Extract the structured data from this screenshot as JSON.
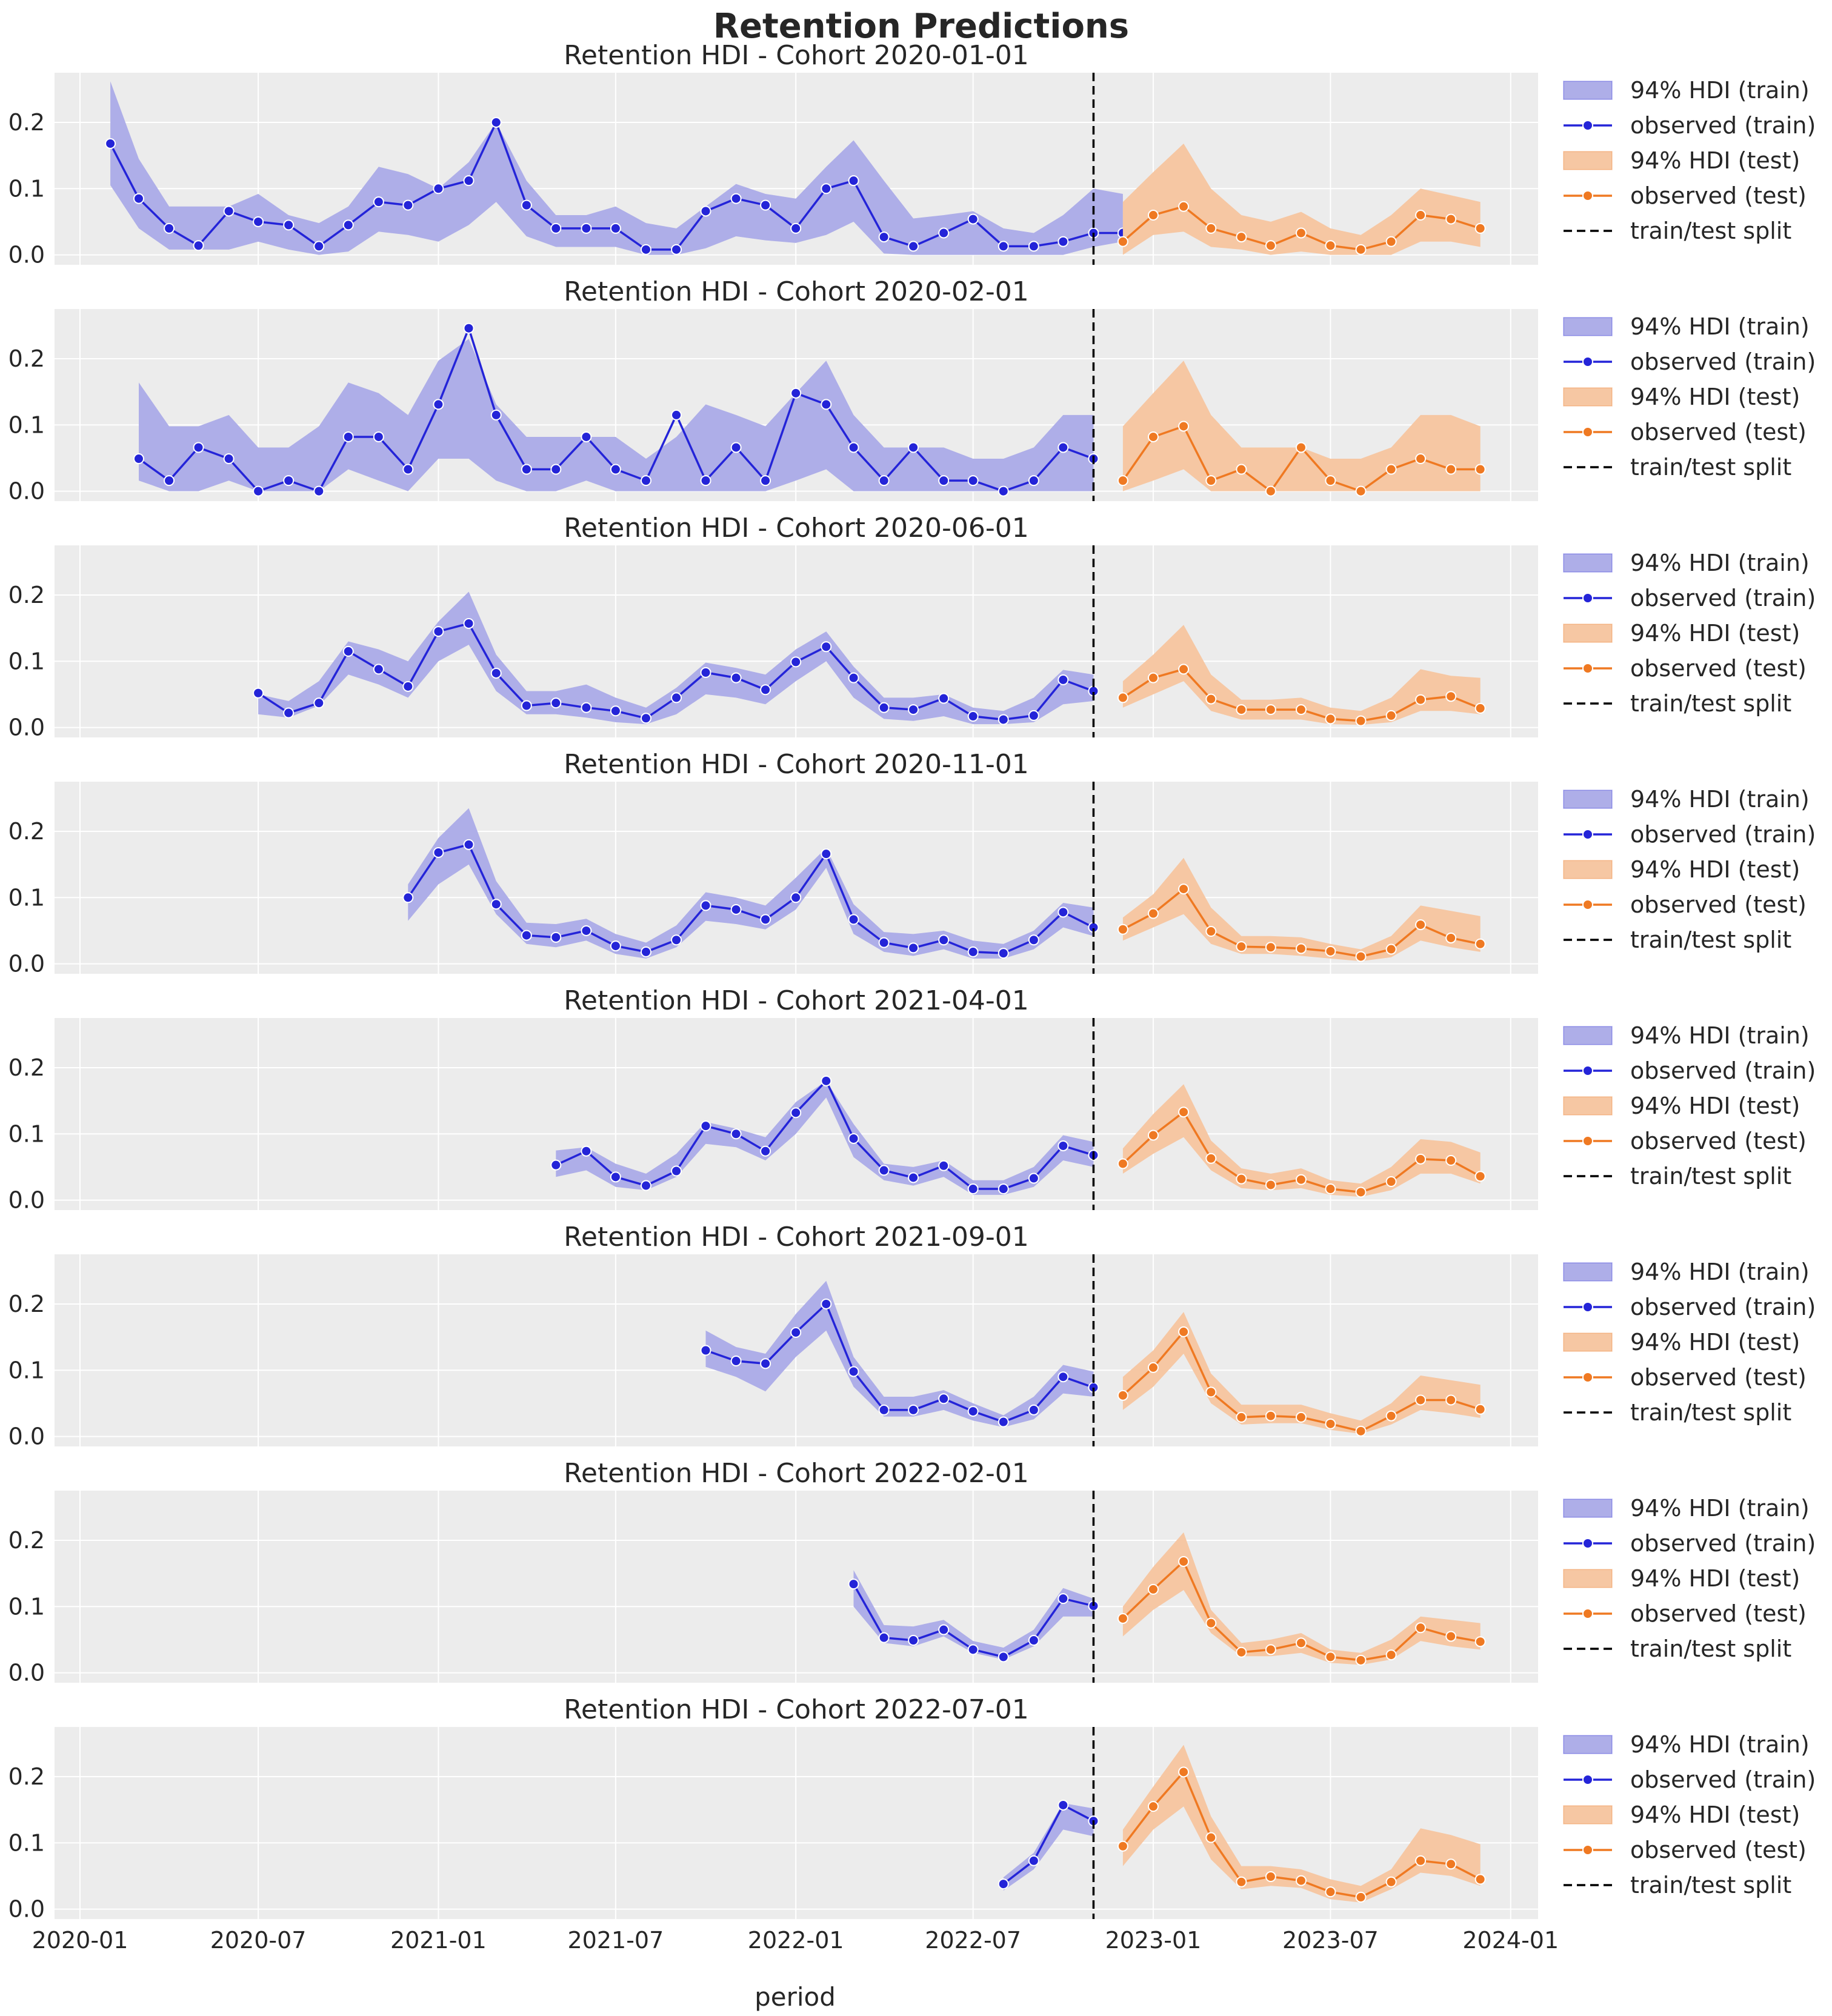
{
  "title": "Retention Predictions",
  "colors": {
    "train": "#2424d8",
    "train_band": "#aeaee8",
    "test": "#ef7922",
    "test_band": "#f6c7a3",
    "split": "#000000",
    "axes_bg": "#ececec",
    "grid": "#ffffff"
  },
  "legend": {
    "hdi_train": "94% HDI (train)",
    "observed_train": "observed (train)",
    "hdi_test": "94% HDI (test)",
    "observed_test": "observed (test)",
    "split": "train/test split"
  },
  "chart_data": {
    "type": "line",
    "title": "Retention Predictions",
    "xlabel": "period",
    "ylabel": "",
    "x_ticks": [
      "2020-01",
      "2020-07",
      "2021-01",
      "2021-07",
      "2022-01",
      "2022-07",
      "2023-01",
      "2023-07",
      "2024-01"
    ],
    "xlim": [
      "2019-12-06",
      "2024-01-29"
    ],
    "y_ticks": [
      "0.0",
      "0.1",
      "0.2"
    ],
    "ylim": [
      -0.015,
      0.275
    ],
    "split_date": "2022-11-01",
    "grid": true,
    "legend_position": "outside right",
    "subplots": [
      {
        "title": "Retention HDI - Cohort 2020-01-01",
        "train": {
          "start": "2020-02",
          "observed": [
            0.168,
            0.085,
            0.04,
            0.014,
            0.066,
            0.05,
            0.045,
            0.013,
            0.045,
            0.08,
            0.075,
            0.1,
            0.112,
            0.2,
            0.075,
            0.04,
            0.04,
            0.04,
            0.008,
            0.008,
            0.066,
            0.085,
            0.075,
            0.04,
            0.1,
            0.112,
            0.027,
            0.013,
            0.033,
            0.054,
            0.013,
            0.013,
            0.02,
            0.033,
            0.033
          ],
          "lower": [
            0.105,
            0.04,
            0.008,
            0.008,
            0.008,
            0.02,
            0.008,
            0.0,
            0.005,
            0.035,
            0.03,
            0.02,
            0.045,
            0.08,
            0.028,
            0.012,
            0.012,
            0.012,
            0.0,
            0.0,
            0.01,
            0.028,
            0.022,
            0.018,
            0.03,
            0.05,
            0.002,
            0.0,
            0.0,
            0.0,
            0.0,
            0.0,
            0.0,
            0.012,
            0.02
          ],
          "upper": [
            0.262,
            0.145,
            0.073,
            0.073,
            0.073,
            0.092,
            0.06,
            0.048,
            0.073,
            0.133,
            0.122,
            0.1,
            0.14,
            0.2,
            0.112,
            0.06,
            0.06,
            0.073,
            0.048,
            0.04,
            0.073,
            0.107,
            0.092,
            0.085,
            0.133,
            0.173,
            0.112,
            0.055,
            0.06,
            0.066,
            0.04,
            0.033,
            0.06,
            0.1,
            0.092
          ]
        },
        "test": {
          "start": "2022-12",
          "observed": [
            0.02,
            0.06,
            0.073,
            0.04,
            0.027,
            0.014,
            0.033,
            0.014,
            0.008,
            0.02,
            0.06,
            0.054,
            0.04
          ],
          "lower": [
            0.0,
            0.03,
            0.035,
            0.012,
            0.008,
            0.0,
            0.005,
            0.0,
            0.0,
            0.0,
            0.02,
            0.02,
            0.012
          ],
          "upper": [
            0.08,
            0.125,
            0.168,
            0.1,
            0.06,
            0.05,
            0.065,
            0.04,
            0.03,
            0.06,
            0.1,
            0.09,
            0.08
          ]
        }
      },
      {
        "title": "Retention HDI - Cohort 2020-02-01",
        "train": {
          "start": "2020-03",
          "observed": [
            0.049,
            0.016,
            0.066,
            0.049,
            0.0,
            0.016,
            0.0,
            0.082,
            0.082,
            0.033,
            0.131,
            0.246,
            0.115,
            0.033,
            0.033,
            0.082,
            0.033,
            0.016,
            0.115,
            0.016,
            0.066,
            0.016,
            0.148,
            0.131,
            0.066,
            0.016,
            0.066,
            0.016,
            0.016,
            0.0,
            0.016,
            0.066,
            0.049
          ],
          "lower": [
            0.016,
            0.0,
            0.0,
            0.016,
            0.0,
            0.0,
            0.0,
            0.033,
            0.016,
            0.0,
            0.049,
            0.049,
            0.016,
            0.0,
            0.0,
            0.016,
            0.0,
            0.0,
            0.0,
            0.0,
            0.0,
            0.0,
            0.016,
            0.033,
            0.0,
            0.0,
            0.0,
            0.0,
            0.0,
            0.0,
            0.0,
            0.0,
            0.0
          ],
          "upper": [
            0.164,
            0.098,
            0.098,
            0.115,
            0.066,
            0.066,
            0.098,
            0.164,
            0.148,
            0.115,
            0.197,
            0.23,
            0.131,
            0.082,
            0.082,
            0.082,
            0.082,
            0.049,
            0.082,
            0.131,
            0.115,
            0.098,
            0.148,
            0.197,
            0.115,
            0.066,
            0.066,
            0.066,
            0.049,
            0.049,
            0.066,
            0.115,
            0.115
          ]
        },
        "test": {
          "start": "2022-12",
          "observed": [
            0.016,
            0.082,
            0.098,
            0.016,
            0.033,
            0.0,
            0.066,
            0.016,
            0.0,
            0.033,
            0.049,
            0.033,
            0.033
          ],
          "lower": [
            0.0,
            0.016,
            0.033,
            0.0,
            0.0,
            0.0,
            0.0,
            0.0,
            0.0,
            0.0,
            0.0,
            0.0,
            0.0
          ],
          "upper": [
            0.098,
            0.148,
            0.197,
            0.115,
            0.066,
            0.066,
            0.066,
            0.049,
            0.049,
            0.066,
            0.115,
            0.115,
            0.098
          ]
        }
      },
      {
        "title": "Retention HDI - Cohort 2020-06-01",
        "train": {
          "start": "2020-07",
          "observed": [
            0.052,
            0.022,
            0.037,
            0.115,
            0.088,
            0.062,
            0.145,
            0.157,
            0.082,
            0.033,
            0.037,
            0.03,
            0.025,
            0.014,
            0.045,
            0.083,
            0.075,
            0.057,
            0.099,
            0.122,
            0.075,
            0.03,
            0.027,
            0.044,
            0.017,
            0.012,
            0.018,
            0.072,
            0.055
          ],
          "lower": [
            0.02,
            0.015,
            0.033,
            0.08,
            0.065,
            0.045,
            0.1,
            0.125,
            0.055,
            0.02,
            0.02,
            0.015,
            0.008,
            0.005,
            0.02,
            0.05,
            0.045,
            0.035,
            0.07,
            0.1,
            0.045,
            0.013,
            0.01,
            0.017,
            0.005,
            0.005,
            0.008,
            0.035,
            0.04
          ],
          "upper": [
            0.05,
            0.04,
            0.07,
            0.13,
            0.118,
            0.1,
            0.16,
            0.205,
            0.11,
            0.055,
            0.055,
            0.065,
            0.045,
            0.03,
            0.06,
            0.098,
            0.09,
            0.08,
            0.118,
            0.145,
            0.092,
            0.045,
            0.045,
            0.05,
            0.03,
            0.025,
            0.045,
            0.087,
            0.08
          ]
        },
        "test": {
          "start": "2022-12",
          "observed": [
            0.045,
            0.075,
            0.088,
            0.043,
            0.027,
            0.027,
            0.027,
            0.013,
            0.01,
            0.018,
            0.042,
            0.047,
            0.029
          ],
          "lower": [
            0.03,
            0.05,
            0.07,
            0.025,
            0.012,
            0.012,
            0.012,
            0.005,
            0.004,
            0.008,
            0.025,
            0.025,
            0.02
          ],
          "upper": [
            0.07,
            0.11,
            0.155,
            0.08,
            0.042,
            0.042,
            0.045,
            0.03,
            0.025,
            0.045,
            0.088,
            0.078,
            0.075
          ]
        }
      },
      {
        "title": "Retention HDI - Cohort 2020-11-01",
        "train": {
          "start": "2020-12",
          "observed": [
            0.1,
            0.168,
            0.18,
            0.09,
            0.043,
            0.04,
            0.05,
            0.027,
            0.018,
            0.036,
            0.088,
            0.082,
            0.067,
            0.1,
            0.166,
            0.067,
            0.032,
            0.024,
            0.036,
            0.018,
            0.016,
            0.036,
            0.078,
            0.055
          ],
          "lower": [
            0.065,
            0.12,
            0.15,
            0.075,
            0.03,
            0.025,
            0.035,
            0.015,
            0.008,
            0.025,
            0.065,
            0.06,
            0.052,
            0.082,
            0.145,
            0.045,
            0.018,
            0.012,
            0.022,
            0.008,
            0.008,
            0.022,
            0.055,
            0.042
          ],
          "upper": [
            0.12,
            0.19,
            0.235,
            0.125,
            0.062,
            0.06,
            0.068,
            0.045,
            0.032,
            0.058,
            0.108,
            0.1,
            0.088,
            0.13,
            0.175,
            0.09,
            0.048,
            0.045,
            0.05,
            0.035,
            0.03,
            0.05,
            0.092,
            0.085
          ]
        },
        "test": {
          "start": "2022-12",
          "observed": [
            0.052,
            0.076,
            0.113,
            0.049,
            0.026,
            0.025,
            0.023,
            0.019,
            0.011,
            0.022,
            0.059,
            0.039,
            0.03
          ],
          "lower": [
            0.035,
            0.055,
            0.075,
            0.03,
            0.015,
            0.015,
            0.012,
            0.008,
            0.004,
            0.01,
            0.035,
            0.025,
            0.018
          ],
          "upper": [
            0.07,
            0.105,
            0.16,
            0.085,
            0.042,
            0.042,
            0.04,
            0.03,
            0.022,
            0.042,
            0.088,
            0.08,
            0.072
          ]
        }
      },
      {
        "title": "Retention HDI - Cohort 2021-04-01",
        "train": {
          "start": "2021-05",
          "observed": [
            0.053,
            0.074,
            0.035,
            0.022,
            0.044,
            0.112,
            0.1,
            0.074,
            0.132,
            0.18,
            0.093,
            0.045,
            0.034,
            0.052,
            0.017,
            0.017,
            0.033,
            0.082,
            0.068
          ],
          "lower": [
            0.035,
            0.045,
            0.02,
            0.015,
            0.035,
            0.085,
            0.08,
            0.06,
            0.1,
            0.155,
            0.065,
            0.03,
            0.022,
            0.035,
            0.008,
            0.008,
            0.02,
            0.06,
            0.05
          ],
          "upper": [
            0.075,
            0.08,
            0.055,
            0.04,
            0.07,
            0.118,
            0.108,
            0.095,
            0.148,
            0.18,
            0.115,
            0.055,
            0.05,
            0.06,
            0.03,
            0.03,
            0.05,
            0.098,
            0.088
          ]
        },
        "test": {
          "start": "2022-12",
          "observed": [
            0.055,
            0.098,
            0.133,
            0.063,
            0.032,
            0.023,
            0.031,
            0.017,
            0.012,
            0.028,
            0.062,
            0.06,
            0.036
          ],
          "lower": [
            0.04,
            0.07,
            0.095,
            0.045,
            0.018,
            0.015,
            0.018,
            0.008,
            0.005,
            0.015,
            0.04,
            0.04,
            0.025
          ],
          "upper": [
            0.078,
            0.13,
            0.175,
            0.09,
            0.048,
            0.04,
            0.048,
            0.03,
            0.025,
            0.05,
            0.092,
            0.088,
            0.072
          ]
        }
      },
      {
        "title": "Retention HDI - Cohort 2021-09-01",
        "train": {
          "start": "2021-10",
          "observed": [
            0.13,
            0.114,
            0.11,
            0.157,
            0.2,
            0.098,
            0.04,
            0.04,
            0.057,
            0.038,
            0.022,
            0.04,
            0.09,
            0.074
          ],
          "lower": [
            0.105,
            0.09,
            0.068,
            0.12,
            0.16,
            0.075,
            0.03,
            0.03,
            0.04,
            0.024,
            0.014,
            0.026,
            0.065,
            0.06
          ],
          "upper": [
            0.16,
            0.135,
            0.125,
            0.185,
            0.235,
            0.12,
            0.06,
            0.06,
            0.07,
            0.05,
            0.032,
            0.06,
            0.108,
            0.098
          ]
        },
        "test": {
          "start": "2022-12",
          "observed": [
            0.062,
            0.104,
            0.158,
            0.067,
            0.029,
            0.031,
            0.029,
            0.019,
            0.008,
            0.031,
            0.055,
            0.055,
            0.041
          ],
          "lower": [
            0.04,
            0.075,
            0.125,
            0.05,
            0.018,
            0.02,
            0.02,
            0.01,
            0.004,
            0.018,
            0.04,
            0.035,
            0.028
          ],
          "upper": [
            0.09,
            0.13,
            0.188,
            0.095,
            0.048,
            0.048,
            0.048,
            0.035,
            0.024,
            0.05,
            0.092,
            0.085,
            0.078
          ]
        }
      },
      {
        "title": "Retention HDI - Cohort 2022-02-01",
        "train": {
          "start": "2022-03",
          "observed": [
            0.134,
            0.053,
            0.049,
            0.065,
            0.035,
            0.024,
            0.049,
            0.112,
            0.101
          ],
          "lower": [
            0.1,
            0.045,
            0.04,
            0.055,
            0.03,
            0.02,
            0.04,
            0.085,
            0.085
          ],
          "upper": [
            0.155,
            0.072,
            0.07,
            0.08,
            0.048,
            0.038,
            0.065,
            0.128,
            0.112
          ]
        },
        "test": {
          "start": "2022-12",
          "observed": [
            0.082,
            0.126,
            0.168,
            0.075,
            0.031,
            0.035,
            0.045,
            0.024,
            0.019,
            0.027,
            0.068,
            0.055,
            0.047
          ],
          "lower": [
            0.055,
            0.095,
            0.125,
            0.06,
            0.025,
            0.025,
            0.03,
            0.015,
            0.012,
            0.02,
            0.048,
            0.04,
            0.035
          ],
          "upper": [
            0.1,
            0.16,
            0.212,
            0.095,
            0.045,
            0.05,
            0.06,
            0.035,
            0.03,
            0.05,
            0.085,
            0.08,
            0.075
          ]
        }
      },
      {
        "title": "Retention HDI - Cohort 2022-07-01",
        "train": {
          "start": "2022-08",
          "observed": [
            0.038,
            0.073,
            0.157,
            0.133
          ],
          "lower": [
            0.028,
            0.06,
            0.12,
            0.11
          ],
          "upper": [
            0.048,
            0.085,
            0.16,
            0.152
          ]
        },
        "test": {
          "start": "2022-12",
          "observed": [
            0.095,
            0.155,
            0.207,
            0.108,
            0.041,
            0.049,
            0.043,
            0.026,
            0.018,
            0.041,
            0.073,
            0.068,
            0.045
          ],
          "lower": [
            0.065,
            0.12,
            0.155,
            0.075,
            0.03,
            0.035,
            0.032,
            0.015,
            0.01,
            0.03,
            0.055,
            0.05,
            0.035
          ],
          "upper": [
            0.12,
            0.185,
            0.248,
            0.14,
            0.065,
            0.065,
            0.06,
            0.045,
            0.035,
            0.06,
            0.122,
            0.112,
            0.098
          ]
        }
      }
    ]
  }
}
